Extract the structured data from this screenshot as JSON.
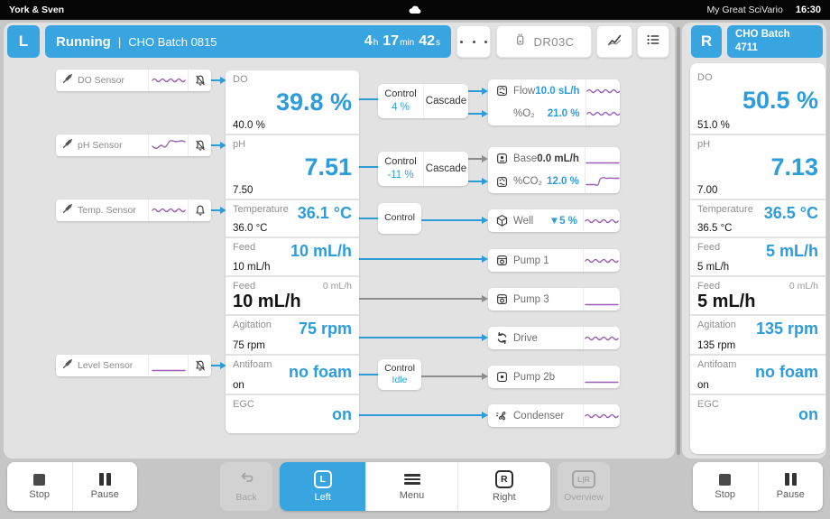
{
  "colors": {
    "accent_blue": "#38a5e1",
    "value_blue": "#2d9cdb",
    "spark_purple": "#9c5fb5",
    "connector_gray": "#8c8c8c"
  },
  "topbar": {
    "org": "York & Sven",
    "device_name": "My Great SciVario",
    "time": "16:30"
  },
  "header_left": {
    "badge": "L",
    "status": "Running",
    "sep": "|",
    "batch": "CHO Batch 0815",
    "runtime": [
      {
        "v": "4",
        "u": "h"
      },
      {
        "v": "17",
        "u": "min"
      },
      {
        "v": "42",
        "u": "s"
      }
    ],
    "device_id": "DR03C"
  },
  "header_right": {
    "badge": "R",
    "batch_line1": "CHO Batch",
    "batch_line2": "4711"
  },
  "sensors": [
    {
      "name": "DO Sensor",
      "alarm": "muted",
      "spark": "wave-small"
    },
    {
      "name": "pH Sensor",
      "alarm": "muted",
      "spark": "wave-s"
    },
    {
      "name": "Temp. Sensor",
      "alarm": "active",
      "spark": "wave-small"
    },
    {
      "name": "Level Sensor",
      "alarm": "muted",
      "spark": "flat-bottom"
    }
  ],
  "left_tiles": {
    "do": {
      "label": "DO",
      "value": "39.8 %",
      "setpoint": "40.0 %"
    },
    "ph": {
      "label": "pH",
      "value": "7.51",
      "setpoint": "7.50"
    },
    "temp": {
      "label": "Temperature",
      "value": "36.1 °C",
      "setpoint": "36.0 °C"
    },
    "feed1": {
      "label": "Feed",
      "value": "10 mL/h",
      "setpoint": "10 mL/h"
    },
    "feed2": {
      "label": "Feed",
      "aux": "0 mL/h",
      "value": "10 mL/h"
    },
    "agitation": {
      "label": "Agitation",
      "value": "75 rpm",
      "setpoint": "75 rpm"
    },
    "antifoam": {
      "label": "Antifoam",
      "value": "no foam",
      "setpoint": "on"
    },
    "egc": {
      "label": "EGC",
      "value": "on"
    }
  },
  "controls": {
    "do": {
      "label": "Control",
      "value": "4 %",
      "cascade": "Cascade"
    },
    "ph": {
      "label": "Control",
      "value": "-11 %",
      "cascade": "Cascade"
    },
    "temp": {
      "label": "Control"
    },
    "antifoam": {
      "label": "Control",
      "value": "Idle"
    }
  },
  "actuators": {
    "flow": {
      "label": "Flow",
      "value": "10.0 sL/h",
      "spark": "wave-small"
    },
    "o2": {
      "label": "%O₂",
      "value": "21.0 %",
      "spark": "wave-small"
    },
    "base": {
      "label": "Base",
      "value": "0.0 mL/h",
      "spark": "flat-low"
    },
    "co2": {
      "label": "%CO₂",
      "value": "12.0 %",
      "spark": "step-up"
    },
    "well": {
      "label": "Well",
      "value": "▼5 %",
      "spark": "wave-small"
    },
    "pump1": {
      "label": "Pump 1",
      "spark": "wave-small"
    },
    "pump3": {
      "label": "Pump 3",
      "spark": "flat-bottom"
    },
    "drive": {
      "label": "Drive",
      "spark": "wave-small"
    },
    "pump2b": {
      "label": "Pump 2b",
      "spark": "flat-bottom"
    },
    "condenser": {
      "label": "Condenser",
      "spark": "wave-small"
    }
  },
  "right_tiles": {
    "do": {
      "label": "DO",
      "value": "50.5 %",
      "setpoint": "51.0 %"
    },
    "ph": {
      "label": "pH",
      "value": "7.13",
      "setpoint": "7.00"
    },
    "temp": {
      "label": "Temperature",
      "value": "36.5 °C",
      "setpoint": "36.5 °C"
    },
    "feed1": {
      "label": "Feed",
      "value": "5 mL/h",
      "setpoint": "5 mL/h"
    },
    "feed2": {
      "label": "Feed",
      "aux": "0 mL/h",
      "value": "5 mL/h"
    },
    "agitation": {
      "label": "Agitation",
      "value": "135 rpm",
      "setpoint": "135 rpm"
    },
    "antifoam": {
      "label": "Antifoam",
      "value": "no foam",
      "setpoint": "on"
    },
    "egc": {
      "label": "EGC",
      "value": "on"
    }
  },
  "bottom": {
    "stop_left": "Stop",
    "pause_left": "Pause",
    "back": "Back",
    "left": "Left",
    "menu": "Menu",
    "right": "Right",
    "overview": "Overview",
    "stop_right": "Stop",
    "pause_right": "Pause",
    "key_left": "L",
    "key_right": "R",
    "key_overview": "L|R"
  }
}
